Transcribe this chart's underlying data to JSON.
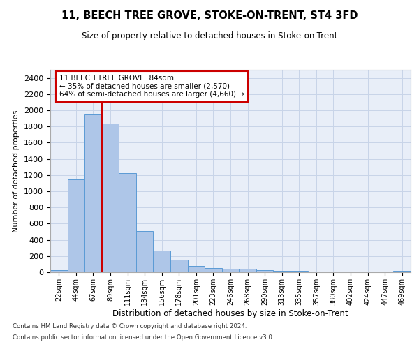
{
  "title": "11, BEECH TREE GROVE, STOKE-ON-TRENT, ST4 3FD",
  "subtitle": "Size of property relative to detached houses in Stoke-on-Trent",
  "xlabel": "Distribution of detached houses by size in Stoke-on-Trent",
  "ylabel": "Number of detached properties",
  "categories": [
    "22sqm",
    "44sqm",
    "67sqm",
    "89sqm",
    "111sqm",
    "134sqm",
    "156sqm",
    "178sqm",
    "201sqm",
    "223sqm",
    "246sqm",
    "268sqm",
    "290sqm",
    "313sqm",
    "335sqm",
    "357sqm",
    "380sqm",
    "402sqm",
    "424sqm",
    "447sqm",
    "469sqm"
  ],
  "values": [
    30,
    1150,
    1950,
    1840,
    1220,
    510,
    265,
    155,
    80,
    50,
    45,
    40,
    25,
    20,
    15,
    5,
    5,
    5,
    5,
    5,
    20
  ],
  "bar_color": "#aec6e8",
  "bar_edge_color": "#5b9bd5",
  "vline_x_index": 2,
  "vline_color": "#cc0000",
  "ylim": [
    0,
    2500
  ],
  "yticks": [
    0,
    200,
    400,
    600,
    800,
    1000,
    1200,
    1400,
    1600,
    1800,
    2000,
    2200,
    2400
  ],
  "annotation_text": "11 BEECH TREE GROVE: 84sqm\n← 35% of detached houses are smaller (2,570)\n64% of semi-detached houses are larger (4,660) →",
  "annotation_box_color": "#ffffff",
  "annotation_box_edge": "#cc0000",
  "background_color": "#ffffff",
  "plot_bg_color": "#e8eef8",
  "grid_color": "#c8d4e8",
  "footer_line1": "Contains HM Land Registry data © Crown copyright and database right 2024.",
  "footer_line2": "Contains public sector information licensed under the Open Government Licence v3.0."
}
